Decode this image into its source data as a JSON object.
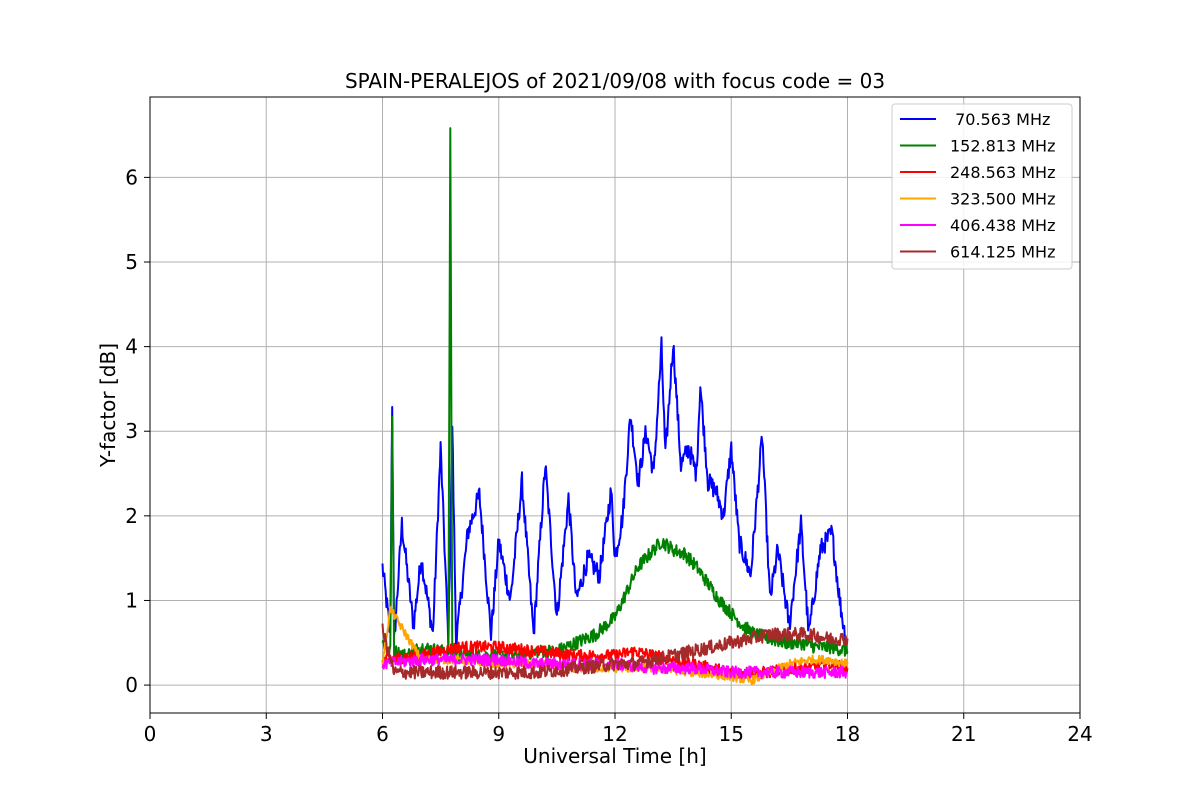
{
  "chart_data": {
    "type": "line",
    "title": "SPAIN-PERALEJOS of 2021/09/08 with focus code = 03",
    "xlabel": "Universal Time [h]",
    "ylabel": "Y-factor [dB]",
    "xlim": [
      0,
      24
    ],
    "ylim": [
      -0.33,
      6.95
    ],
    "xticks": [
      0,
      3,
      6,
      9,
      12,
      15,
      18,
      21,
      24
    ],
    "yticks": [
      0,
      1,
      2,
      3,
      4,
      5,
      6
    ],
    "grid": true,
    "legend_position": "top-right",
    "series": [
      {
        "name": " 70.563 MHz",
        "color": "#0000ff",
        "x": [
          6.0,
          6.2,
          6.25,
          6.3,
          6.5,
          6.8,
          7.0,
          7.3,
          7.5,
          7.7,
          7.8,
          7.9,
          8.2,
          8.5,
          8.8,
          9.0,
          9.3,
          9.6,
          9.9,
          10.2,
          10.5,
          10.8,
          11.0,
          11.3,
          11.6,
          11.9,
          12.0,
          12.2,
          12.4,
          12.6,
          12.8,
          13.0,
          13.2,
          13.3,
          13.5,
          13.7,
          13.9,
          14.1,
          14.2,
          14.4,
          14.6,
          14.8,
          15.0,
          15.2,
          15.5,
          15.8,
          16.0,
          16.2,
          16.5,
          16.8,
          17.0,
          17.3,
          17.6,
          17.8,
          18.0
        ],
        "y": [
          1.4,
          0.6,
          3.35,
          0.5,
          1.9,
          0.7,
          1.5,
          0.6,
          2.8,
          0.5,
          3.1,
          0.5,
          1.8,
          2.25,
          0.6,
          1.7,
          1.0,
          2.4,
          0.6,
          2.6,
          0.8,
          2.2,
          1.0,
          1.5,
          1.3,
          2.3,
          1.5,
          2.0,
          3.2,
          2.4,
          3.0,
          2.5,
          4.0,
          2.7,
          4.05,
          2.6,
          2.8,
          2.5,
          3.55,
          2.4,
          2.3,
          2.0,
          2.8,
          1.7,
          1.3,
          2.95,
          1.0,
          1.6,
          0.7,
          1.9,
          0.6,
          1.6,
          1.8,
          1.0,
          0.4
        ]
      },
      {
        "name": "152.813 MHz",
        "color": "#008000",
        "x": [
          6.0,
          6.2,
          6.25,
          6.3,
          6.6,
          7.0,
          7.5,
          7.7,
          7.75,
          7.8,
          8.0,
          8.5,
          9.0,
          9.5,
          10.0,
          10.5,
          11.0,
          11.5,
          12.0,
          12.3,
          12.6,
          12.9,
          13.2,
          13.5,
          13.8,
          14.1,
          14.4,
          14.7,
          15.0,
          15.3,
          15.6,
          16.0,
          16.4,
          16.8,
          17.2,
          17.6,
          18.0
        ],
        "y": [
          0.5,
          0.4,
          3.1,
          0.4,
          0.35,
          0.45,
          0.4,
          0.4,
          6.6,
          0.4,
          0.35,
          0.35,
          0.35,
          0.35,
          0.4,
          0.4,
          0.5,
          0.6,
          0.8,
          1.1,
          1.4,
          1.55,
          1.7,
          1.6,
          1.55,
          1.4,
          1.2,
          1.0,
          0.85,
          0.7,
          0.6,
          0.55,
          0.5,
          0.5,
          0.45,
          0.45,
          0.4
        ]
      },
      {
        "name": "248.563 MHz",
        "color": "#ff0000",
        "x": [
          6.0,
          7.0,
          8.0,
          9.0,
          10.0,
          11.0,
          12.0,
          12.5,
          13.0,
          13.5,
          14.0,
          14.5,
          15.0,
          15.5,
          16.0,
          16.5,
          17.0,
          17.5,
          18.0
        ],
        "y": [
          0.3,
          0.35,
          0.45,
          0.45,
          0.4,
          0.35,
          0.35,
          0.4,
          0.35,
          0.3,
          0.25,
          0.2,
          0.15,
          0.15,
          0.15,
          0.2,
          0.2,
          0.25,
          0.2
        ]
      },
      {
        "name": "323.500 MHz",
        "color": "#ffa500",
        "x": [
          6.0,
          6.2,
          7.0,
          8.0,
          9.0,
          10.0,
          11.0,
          12.0,
          13.0,
          14.0,
          15.0,
          15.5,
          16.0,
          16.5,
          17.0,
          17.5,
          18.0
        ],
        "y": [
          0.25,
          0.9,
          0.3,
          0.3,
          0.25,
          0.25,
          0.2,
          0.2,
          0.2,
          0.15,
          0.1,
          0.05,
          0.15,
          0.25,
          0.3,
          0.3,
          0.25
        ]
      },
      {
        "name": "406.438 MHz",
        "color": "#ff00ff",
        "x": [
          6.0,
          7.0,
          8.0,
          9.0,
          10.0,
          11.0,
          12.0,
          13.0,
          14.0,
          15.0,
          16.0,
          17.0,
          18.0
        ],
        "y": [
          0.25,
          0.3,
          0.3,
          0.3,
          0.25,
          0.25,
          0.25,
          0.2,
          0.2,
          0.15,
          0.15,
          0.15,
          0.15
        ]
      },
      {
        "name": "614.125 MHz",
        "color": "#a52a2a",
        "x": [
          6.0,
          6.3,
          7.0,
          8.0,
          9.0,
          10.0,
          11.0,
          12.0,
          12.5,
          13.0,
          13.5,
          14.0,
          14.5,
          15.0,
          15.5,
          16.0,
          16.5,
          17.0,
          17.5,
          18.0
        ],
        "y": [
          0.65,
          0.15,
          0.15,
          0.15,
          0.15,
          0.15,
          0.2,
          0.25,
          0.25,
          0.3,
          0.35,
          0.4,
          0.45,
          0.5,
          0.55,
          0.6,
          0.6,
          0.6,
          0.55,
          0.55
        ]
      }
    ]
  }
}
